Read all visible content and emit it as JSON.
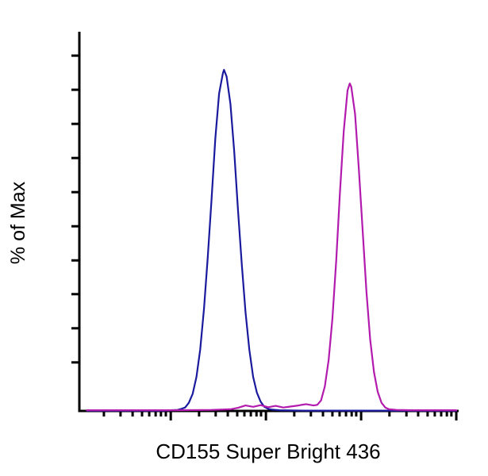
{
  "figure": {
    "kind": "flow-cytometry-histogram-overlay"
  },
  "chart_data": {
    "type": "line",
    "subtype": "flow-cytometry-histogram",
    "title": "",
    "xlabel": "CD155 Super Bright 436",
    "ylabel": "% of Max",
    "grid": false,
    "legend": "none",
    "x_axis": {
      "scale": "log-style, unlabeled ticks",
      "tick_labels": [],
      "major_ticks_pct": [
        24.2,
        49.4,
        74.6,
        99.8
      ],
      "minor_ticks_pct": [
        6.5,
        10.9,
        14.1,
        16.6,
        18.5,
        20.2,
        21.6,
        22.9,
        31.7,
        36.1,
        39.3,
        41.8,
        43.7,
        45.4,
        46.9,
        48.1,
        56.9,
        61.3,
        64.5,
        67.0,
        68.9,
        70.6,
        72.1,
        73.3,
        82.1,
        86.6,
        89.7,
        92.2,
        94.1,
        95.8,
        97.3,
        98.5
      ]
    },
    "y_axis": {
      "range_pct_of_max": [
        0,
        100
      ],
      "tick_labels": [],
      "ticks_pct_from_top": [
        6.3,
        15.3,
        24.3,
        33.3,
        42.3,
        51.3,
        60.3,
        69.2,
        78.2,
        87.2
      ]
    },
    "series": [
      {
        "name": "blue-curve",
        "color": "#1a1a9e",
        "peak": {
          "x_pct": 38.3,
          "y_pct_of_max": 100
        },
        "points": [
          [
            2,
            0.1
          ],
          [
            18,
            0.1
          ],
          [
            22,
            0.1
          ],
          [
            24,
            0.2
          ],
          [
            26,
            0.3
          ],
          [
            27,
            0.6
          ],
          [
            28,
            1
          ],
          [
            29,
            2.4
          ],
          [
            30,
            5
          ],
          [
            31,
            10
          ],
          [
            32,
            18
          ],
          [
            33,
            30
          ],
          [
            34,
            45
          ],
          [
            35,
            62
          ],
          [
            36,
            80
          ],
          [
            37,
            93
          ],
          [
            38,
            99
          ],
          [
            38.3,
            100
          ],
          [
            39,
            98
          ],
          [
            40,
            90
          ],
          [
            41,
            76
          ],
          [
            42,
            59
          ],
          [
            43,
            43
          ],
          [
            44,
            29
          ],
          [
            45,
            18
          ],
          [
            46,
            10
          ],
          [
            47,
            5.4
          ],
          [
            48,
            2.7
          ],
          [
            49,
            1.2
          ],
          [
            50,
            0.6
          ],
          [
            51,
            0.4
          ],
          [
            53,
            0.2
          ],
          [
            56,
            0.15
          ],
          [
            60,
            0.1
          ],
          [
            99.8,
            0.1
          ]
        ]
      },
      {
        "name": "magenta-curve",
        "color": "#b21bad",
        "peak": {
          "x_pct": 71.6,
          "y_pct_of_max": 96
        },
        "points": [
          [
            2,
            0.2
          ],
          [
            25,
            0.2
          ],
          [
            35,
            0.3
          ],
          [
            40,
            0.5
          ],
          [
            42,
            0.9
          ],
          [
            44,
            1.6
          ],
          [
            46,
            1.2
          ],
          [
            48,
            1.7
          ],
          [
            50,
            1.1
          ],
          [
            52,
            1.5
          ],
          [
            54,
            1.0
          ],
          [
            56,
            1.3
          ],
          [
            58,
            1.6
          ],
          [
            60,
            2.0
          ],
          [
            62,
            1.6
          ],
          [
            63,
            1.8
          ],
          [
            64,
            3.1
          ],
          [
            65,
            7.2
          ],
          [
            66,
            15
          ],
          [
            67,
            27
          ],
          [
            68,
            44
          ],
          [
            69,
            64
          ],
          [
            70,
            82
          ],
          [
            71,
            94
          ],
          [
            71.6,
            96
          ],
          [
            72,
            95
          ],
          [
            73,
            87
          ],
          [
            74,
            71
          ],
          [
            75,
            53
          ],
          [
            76,
            35
          ],
          [
            77,
            21
          ],
          [
            78,
            11.4
          ],
          [
            79,
            5.6
          ],
          [
            80,
            2.4
          ],
          [
            81,
            1.0
          ],
          [
            82,
            0.5
          ],
          [
            84,
            0.3
          ],
          [
            88,
            0.2
          ],
          [
            99.8,
            0.2
          ]
        ]
      }
    ]
  }
}
